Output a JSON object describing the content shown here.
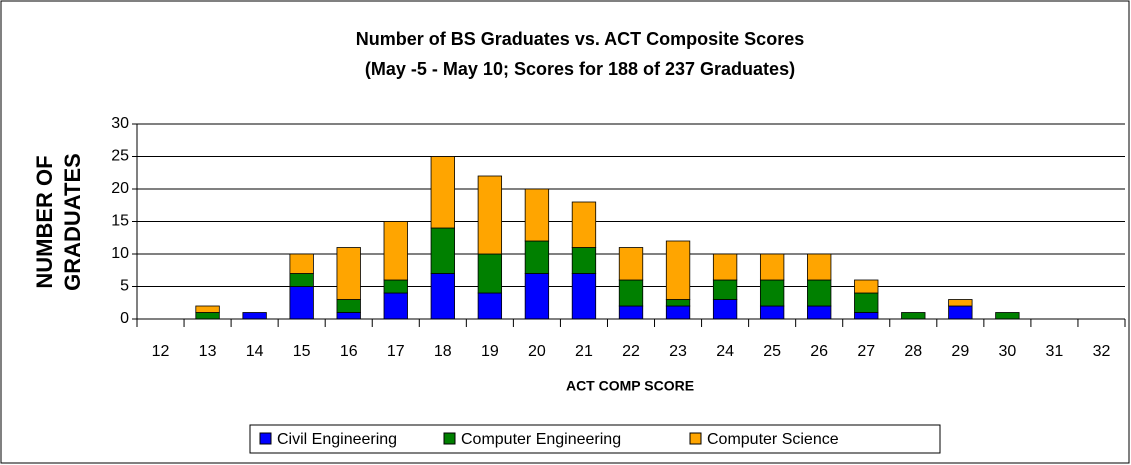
{
  "chart_data": {
    "type": "stacked_bar",
    "title": "Number of BS Graduates vs. ACT Composite Scores",
    "subtitle": "(May -5 - May 10; Scores for 188 of 237 Graduates)",
    "xlabel": "ACT COMP SCORE",
    "ylabel": [
      "NUMBER OF",
      "GRADUATES"
    ],
    "categories": [
      "12",
      "13",
      "14",
      "15",
      "16",
      "17",
      "18",
      "19",
      "20",
      "21",
      "22",
      "23",
      "24",
      "25",
      "26",
      "27",
      "28",
      "29",
      "30",
      "31",
      "32"
    ],
    "series": [
      {
        "name": "Civil Engineering",
        "color": "#0000ff",
        "values": [
          0,
          0,
          1,
          5,
          1,
          4,
          7,
          4,
          7,
          7,
          2,
          2,
          3,
          2,
          2,
          1,
          0,
          2,
          0,
          0,
          0
        ]
      },
      {
        "name": "Computer Engineering",
        "color": "#008000",
        "values": [
          0,
          1,
          0,
          2,
          2,
          2,
          7,
          6,
          5,
          4,
          4,
          1,
          3,
          4,
          4,
          3,
          1,
          0,
          1,
          0,
          0
        ]
      },
      {
        "name": "Computer Science",
        "color": "#ffa500",
        "values": [
          0,
          1,
          0,
          3,
          8,
          9,
          11,
          12,
          8,
          7,
          5,
          9,
          4,
          4,
          4,
          2,
          0,
          1,
          0,
          0,
          0
        ]
      }
    ],
    "ylim": [
      0,
      30
    ],
    "yticks": [
      0,
      5,
      10,
      15,
      20,
      25,
      30
    ],
    "grid": true,
    "legend": "bottom"
  }
}
